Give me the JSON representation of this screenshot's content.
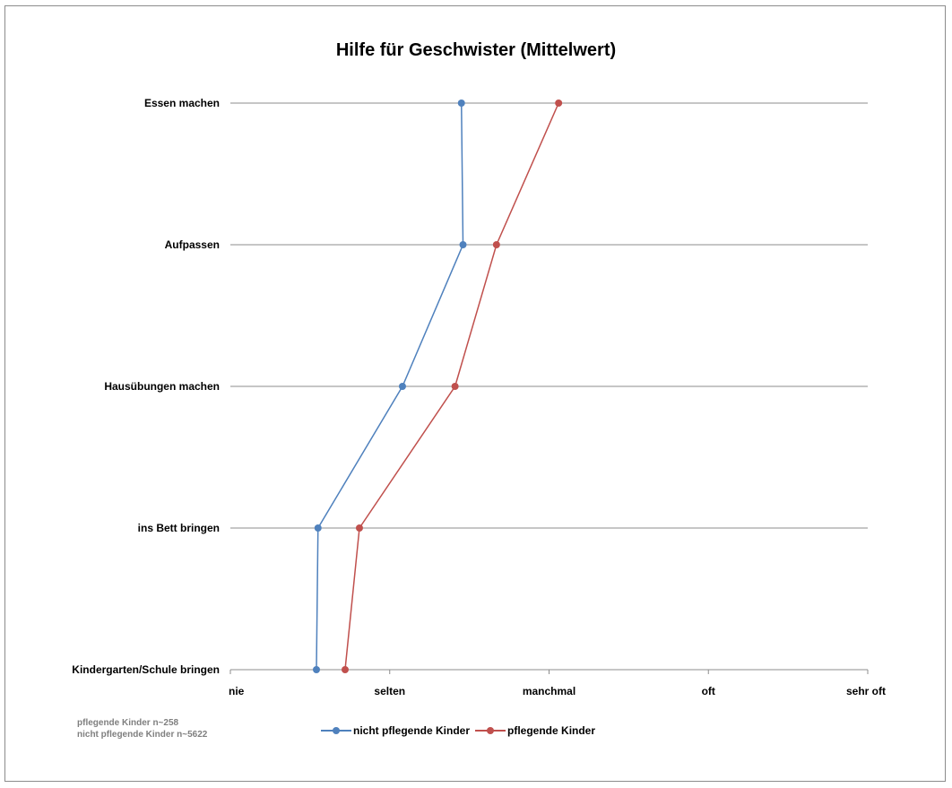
{
  "chart_data": {
    "type": "line",
    "orientation": "horizontal",
    "title": "Hilfe für Geschwister (Mittelwert)",
    "categories": [
      "Essen machen",
      "Aufpassen",
      "Hausübungen machen",
      "ins Bett bringen",
      "Kindergarten/Schule bringen"
    ],
    "x_tick_labels": [
      "nie",
      "selten",
      "manchmal",
      "oft",
      "sehr oft"
    ],
    "xlim": [
      1,
      5
    ],
    "series": [
      {
        "name": "nicht pflegende Kinder",
        "color": "#4f81bd",
        "values": [
          2.45,
          2.46,
          2.08,
          1.55,
          1.54
        ]
      },
      {
        "name": "pflegende Kinder",
        "color": "#c0504d",
        "values": [
          3.06,
          2.67,
          2.41,
          1.81,
          1.72
        ]
      }
    ],
    "grid": true,
    "legend_position": "bottom",
    "notes": [
      "pflegende Kinder n~258",
      "nicht pflegende Kinder n~5622"
    ]
  }
}
